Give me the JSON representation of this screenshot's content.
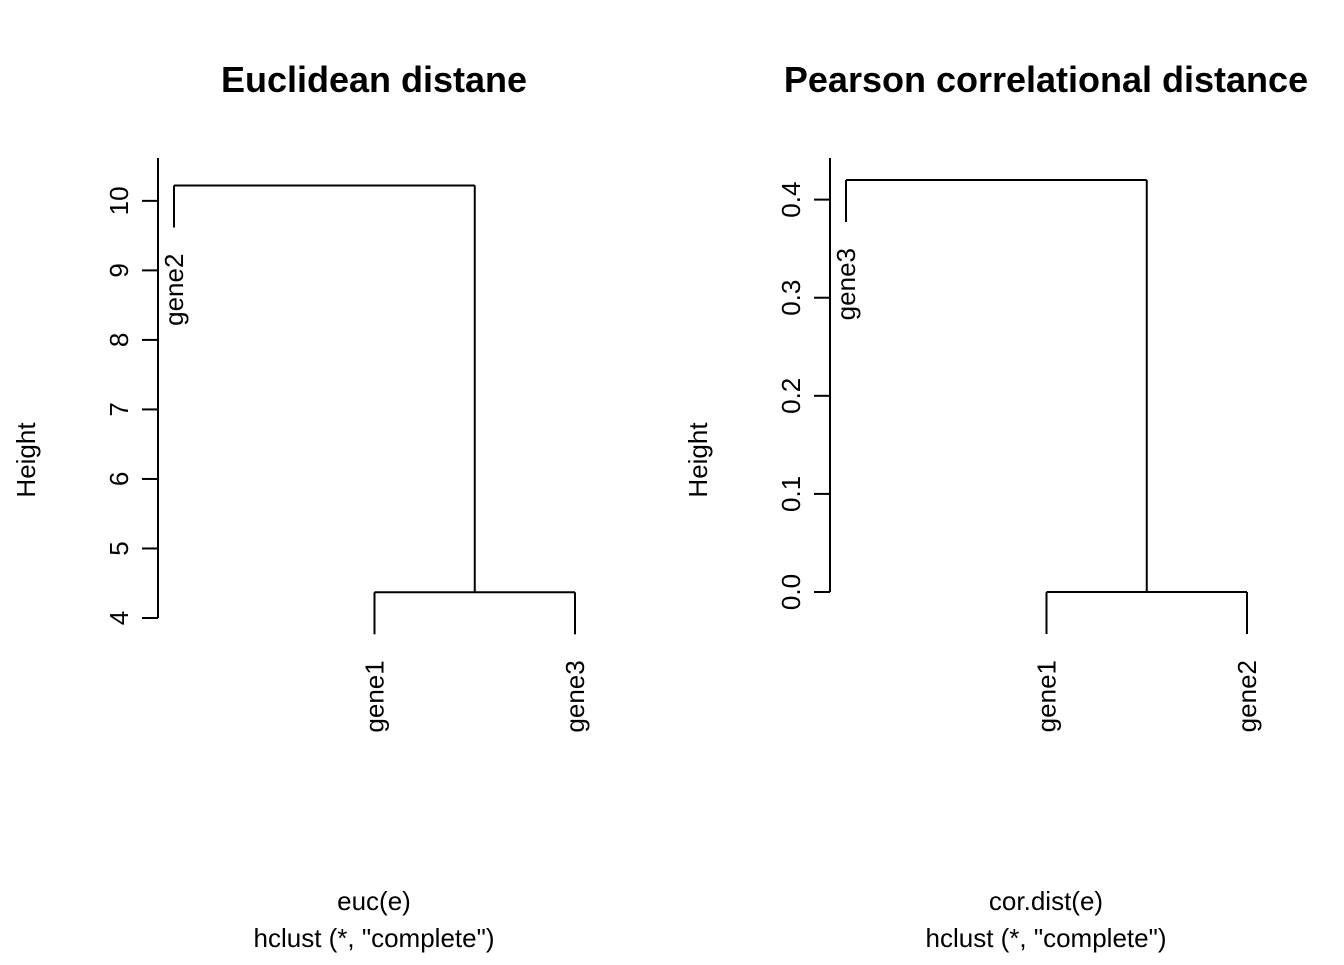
{
  "chart_data": [
    {
      "type": "dendrogram",
      "title": "Euclidean distane",
      "ylabel": "Height",
      "xlabel": "euc(e)",
      "sub": "hclust (*, \"complete\")",
      "yticks": [
        4,
        5,
        6,
        7,
        8,
        9,
        10
      ],
      "ylim": [
        4,
        10.3
      ],
      "leaves": [
        "gene2",
        "gene1",
        "gene3"
      ],
      "leaf_positions": [
        1,
        2,
        3
      ],
      "merges": [
        {
          "left": "gene1",
          "right": "gene3",
          "height": 4.37
        },
        {
          "left": "gene2",
          "right": "gene1+gene3",
          "height": 10.22
        }
      ]
    },
    {
      "type": "dendrogram",
      "title": "Pearson correlational distance",
      "ylabel": "Height",
      "xlabel": "cor.dist(e)",
      "sub": "hclust (*, \"complete\")",
      "yticks": [
        0.0,
        0.1,
        0.2,
        0.3,
        0.4
      ],
      "ytick_labels": [
        "0.0",
        "0.1",
        "0.2",
        "0.3",
        "0.4"
      ],
      "ylim": [
        0,
        0.42
      ],
      "leaves": [
        "gene3",
        "gene1",
        "gene2"
      ],
      "leaf_positions": [
        1,
        2,
        3
      ],
      "merges": [
        {
          "left": "gene1",
          "right": "gene2",
          "height": 0.0
        },
        {
          "left": "gene3",
          "right": "gene1+gene2",
          "height": 0.42
        }
      ]
    }
  ]
}
